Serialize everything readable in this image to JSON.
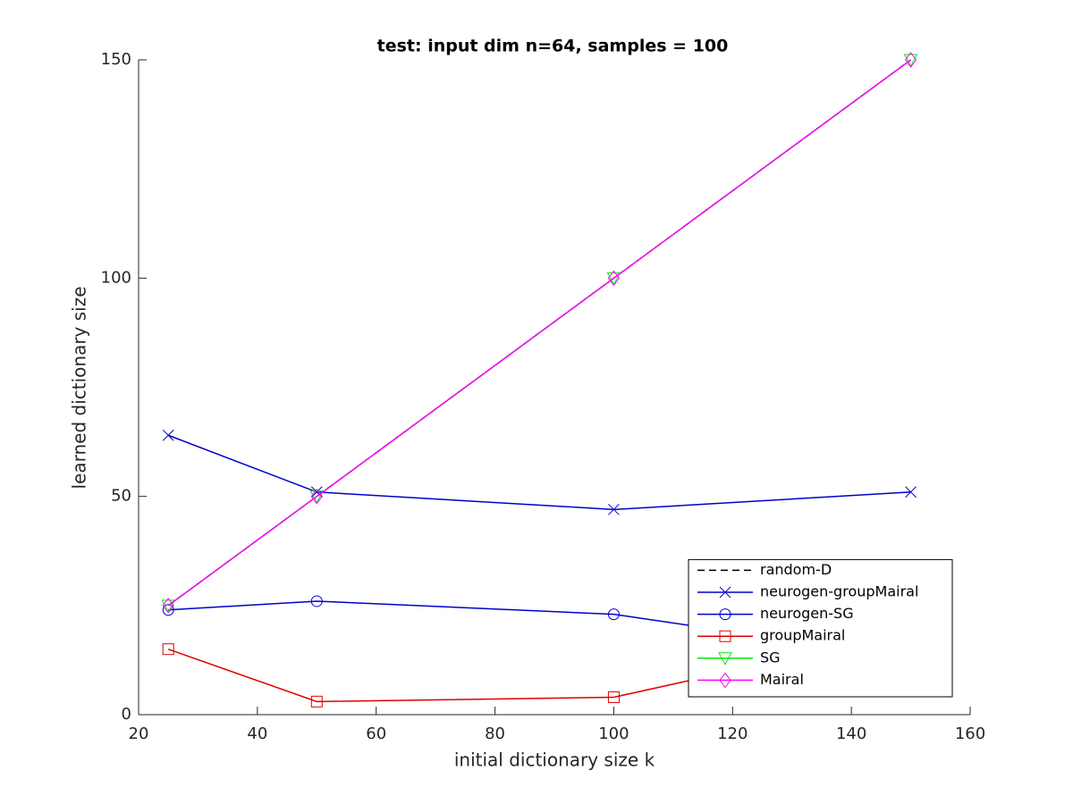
{
  "chart_data": {
    "type": "line",
    "title": "test: input dim n=64, samples = 100",
    "x_label": "initial dictionary size k",
    "y_label": "learned dictionary size",
    "x": [
      25,
      50,
      100,
      150
    ],
    "xlim": [
      20,
      160
    ],
    "xticks": [
      20,
      40,
      60,
      80,
      100,
      120,
      140,
      160
    ],
    "ylim": [
      0,
      150
    ],
    "yticks": [
      0,
      50,
      100,
      150
    ],
    "legend": "lower right",
    "series": [
      {
        "name": "random-D",
        "color": "#000000",
        "linestyle": "dashed",
        "marker": "none",
        "values": [
          25,
          50,
          100,
          150
        ]
      },
      {
        "name": "neurogen-groupMairal",
        "color": "#0000cc",
        "linestyle": "solid",
        "marker": "x",
        "values": [
          64,
          51,
          47,
          51
        ]
      },
      {
        "name": "neurogen-SG",
        "color": "#0000cc",
        "linestyle": "solid",
        "marker": "circle",
        "values": [
          24,
          26,
          23,
          13
        ]
      },
      {
        "name": "groupMairal",
        "color": "#dd0000",
        "linestyle": "solid",
        "marker": "square",
        "values": [
          15,
          3,
          4,
          19
        ]
      },
      {
        "name": "SG",
        "color": "#00ee00",
        "linestyle": "solid",
        "marker": "triangle-down",
        "values": [
          25,
          50,
          100,
          150
        ]
      },
      {
        "name": "Mairal",
        "color": "#ff00ff",
        "linestyle": "solid",
        "marker": "diamond",
        "values": [
          25,
          50,
          100,
          150
        ]
      }
    ]
  }
}
